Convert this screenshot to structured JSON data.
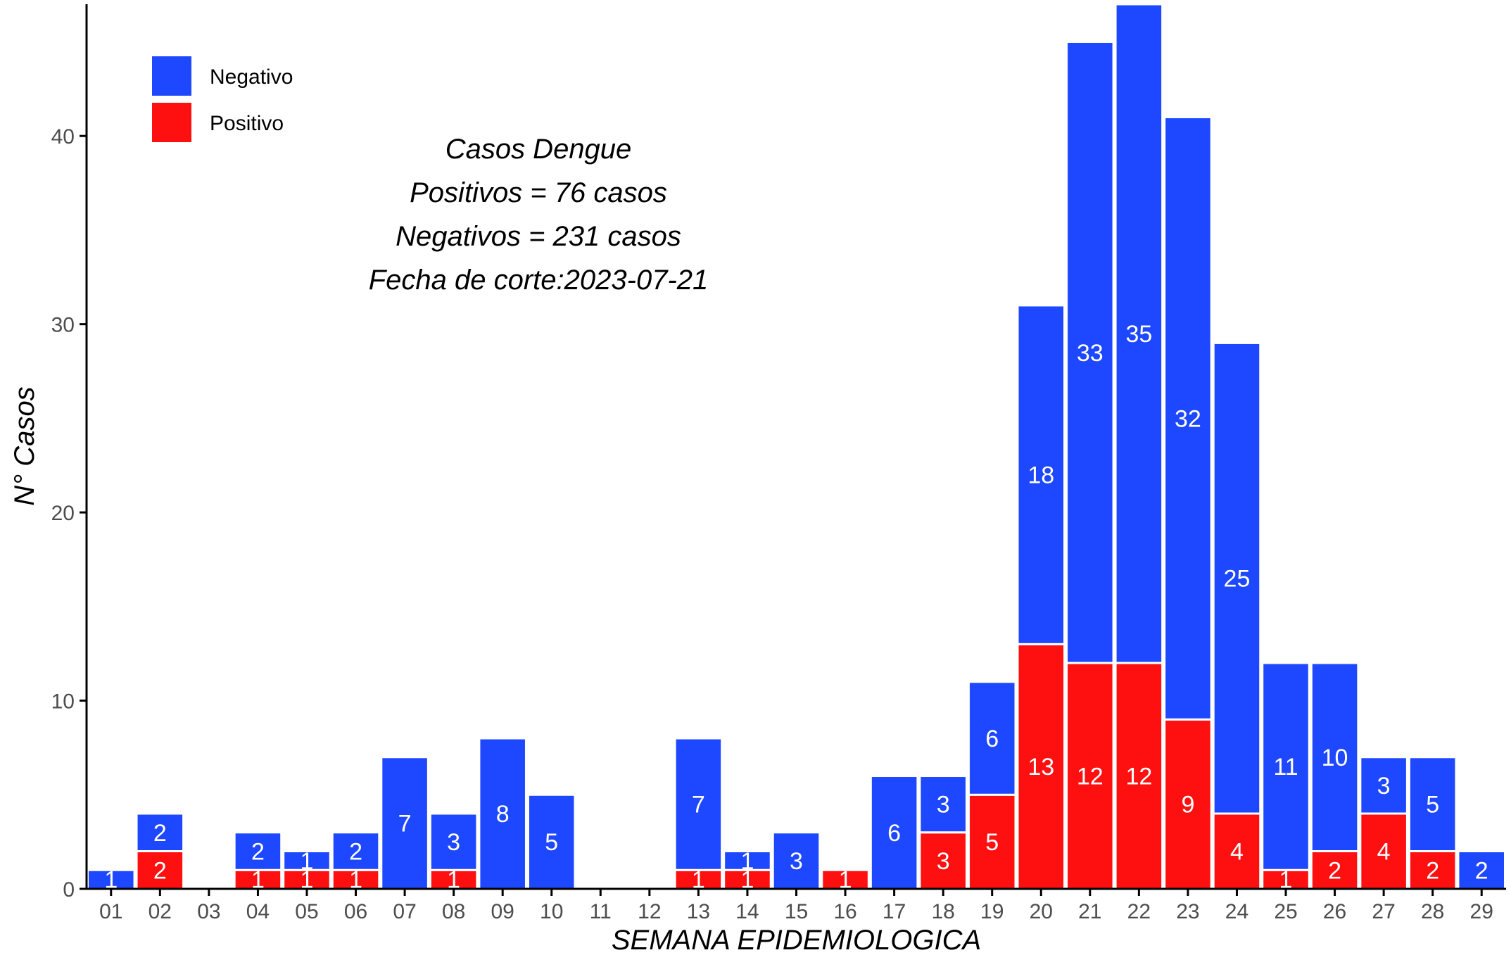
{
  "chart_data": {
    "type": "bar",
    "stacked": true,
    "xlabel": "SEMANA EPIDEMIOLOGICA",
    "ylabel": "N° Casos",
    "ylim": [
      0,
      47
    ],
    "yticks": [
      0,
      10,
      20,
      30,
      40
    ],
    "grid": false,
    "legend_position": "top-left",
    "categories": [
      "01",
      "02",
      "03",
      "04",
      "05",
      "06",
      "07",
      "08",
      "09",
      "10",
      "11",
      "12",
      "13",
      "14",
      "15",
      "16",
      "17",
      "18",
      "19",
      "20",
      "21",
      "22",
      "23",
      "24",
      "25",
      "26",
      "27",
      "28",
      "29"
    ],
    "series": [
      {
        "name": "Positivo",
        "color": "#FF1010",
        "values": [
          0,
          2,
          0,
          1,
          1,
          1,
          0,
          1,
          0,
          0,
          0,
          0,
          1,
          1,
          0,
          1,
          0,
          3,
          5,
          13,
          12,
          12,
          9,
          4,
          1,
          2,
          4,
          2,
          0
        ]
      },
      {
        "name": "Negativo",
        "color": "#1E48FF",
        "values": [
          1,
          2,
          0,
          2,
          1,
          2,
          7,
          3,
          8,
          5,
          0,
          0,
          7,
          1,
          3,
          0,
          6,
          3,
          6,
          18,
          33,
          35,
          32,
          25,
          11,
          10,
          3,
          5,
          2
        ]
      }
    ],
    "annotation": [
      "Casos Dengue",
      "Positivos = 76 casos",
      "Negativos = 231 casos",
      "Fecha de corte:2023-07-21"
    ]
  }
}
